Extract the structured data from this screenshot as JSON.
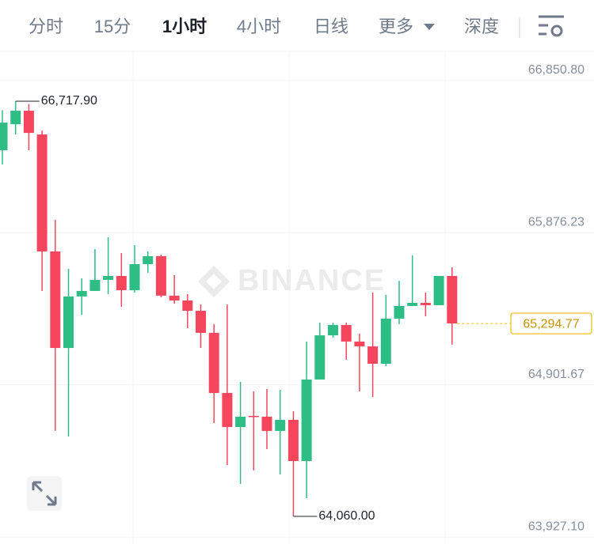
{
  "tabs": [
    "分时",
    "15分",
    "1小时",
    "4小时",
    "日线",
    "更多",
    "深度"
  ],
  "chart_data": {
    "type": "candlestick",
    "watermark": "BINANCE",
    "up_color": "#2ebd85",
    "down_color": "#f6465d",
    "open": [
      66404,
      66571,
      66657,
      66505,
      65756,
      65138,
      65468,
      65503,
      65574,
      65599,
      65508,
      65675,
      65726,
      65473,
      65442,
      65376,
      65235,
      64850,
      64632,
      64703,
      64698,
      64607,
      64678,
      64414,
      64936,
      65219,
      65285,
      65179,
      65148,
      65037,
      65326,
      65407,
      65427,
      65412,
      65599
    ],
    "high": [
      66660,
      66717.9,
      66700,
      66531,
      65958,
      65645,
      65584,
      65771,
      65847,
      65746,
      65796,
      65756,
      65736,
      65604,
      65483,
      65417,
      65290,
      65417,
      64921,
      64860,
      64875,
      64870,
      64733,
      65179,
      65300,
      65300,
      65300,
      65230,
      65493,
      65478,
      65569,
      65731,
      65493,
      65599,
      65655
    ],
    "low": [
      66313,
      66505,
      66404,
      65503,
      64607,
      64571,
      65351,
      65503,
      65483,
      65402,
      65493,
      65619,
      65462,
      65422,
      65265,
      65138,
      64657,
      64389,
      64268,
      64354,
      64490,
      64328,
      64060,
      64176,
      64936,
      65204,
      65063,
      64860,
      64824,
      65022,
      65290,
      65407,
      65341,
      65412,
      65159
    ],
    "close": [
      66581,
      66657,
      66515,
      65756,
      65138,
      65468,
      65503,
      65574,
      65599,
      65508,
      65675,
      65726,
      65473,
      65442,
      65376,
      65235,
      64850,
      64632,
      64698,
      64698,
      64607,
      64678,
      64414,
      64936,
      65219,
      65285,
      65179,
      65148,
      65037,
      65326,
      65407,
      65427,
      65412,
      65599,
      65294.77
    ],
    "ylim": [
      63882.6,
      67036.9
    ],
    "yticks": [
      {
        "value": 66850.8,
        "label": "66,850.80"
      },
      {
        "value": 65876.23,
        "label": "65,876.23"
      },
      {
        "value": 64901.67,
        "label": "64,901.67"
      },
      {
        "value": 63927.1,
        "label": "63,927.10"
      }
    ],
    "grid": true,
    "annotations": [
      {
        "value": 66717.9,
        "label": "66,717.90"
      },
      {
        "value": 64060,
        "label": "64,060.00"
      }
    ],
    "last_price": {
      "value": 65294.77,
      "label": "65,294.77"
    }
  }
}
